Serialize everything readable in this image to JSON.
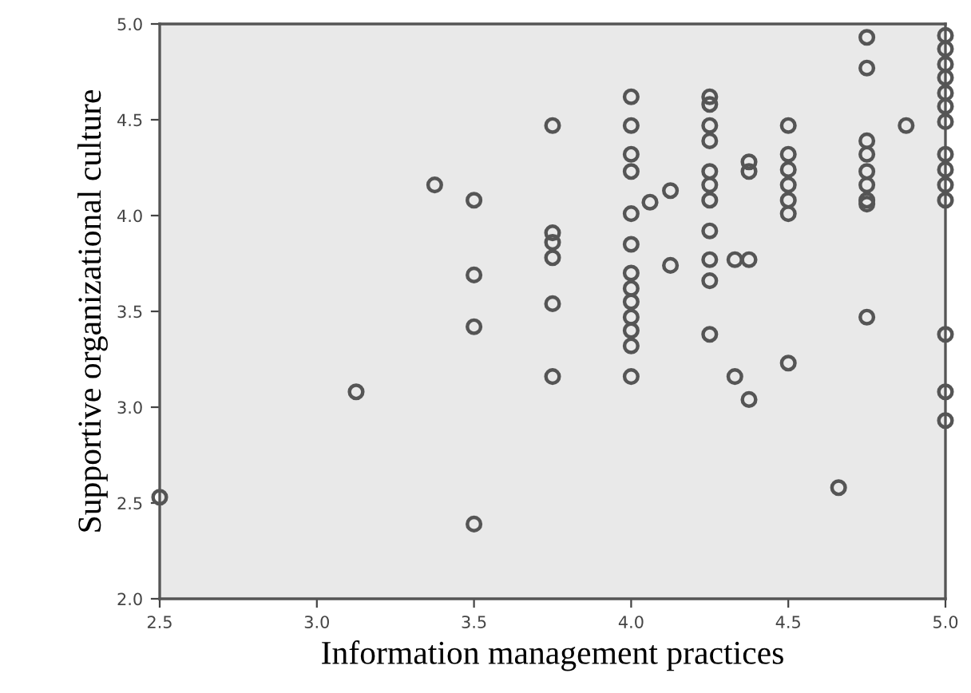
{
  "chart_data": {
    "type": "scatter",
    "xlabel": "Information management practices",
    "ylabel": "Supportive organizational culture",
    "xlim": [
      2.5,
      5.0
    ],
    "xticks": [
      2.5,
      {
        "value": 3,
        "label": "3.0"
      },
      3.5,
      {
        "value": 4,
        "label": "4.0"
      },
      4.5,
      {
        "value": 5,
        "label": "5.0"
      }
    ],
    "ylim": [
      2.0,
      5.0
    ],
    "yticks": [
      {
        "value": 2,
        "label": "2.0"
      },
      2.5,
      {
        "value": 3,
        "label": "3.0"
      },
      3.5,
      {
        "value": 4,
        "label": "4.0"
      },
      4.5,
      {
        "value": 5,
        "label": "5.0"
      }
    ],
    "grid": false,
    "marker": "circle",
    "series": [
      {
        "color": "#555555",
        "x": [
          2.5,
          3.125,
          3.375,
          3.5,
          3.5,
          3.5,
          3.5,
          3.75,
          3.75,
          3.75,
          3.75,
          3.75,
          3.75,
          4.0,
          4.0,
          4.0,
          4.0,
          4.0,
          4.0,
          4.0,
          4.0,
          4.0,
          4.0,
          4.0,
          4.0,
          4.0,
          4.06,
          4.125,
          4.125,
          4.25,
          4.25,
          4.25,
          4.25,
          4.25,
          4.25,
          4.25,
          4.25,
          4.25,
          4.25,
          4.25,
          4.33,
          4.33,
          4.375,
          4.375,
          4.375,
          4.375,
          4.5,
          4.5,
          4.5,
          4.5,
          4.5,
          4.5,
          4.5,
          4.66,
          4.75,
          4.75,
          4.75,
          4.75,
          4.75,
          4.75,
          4.75,
          4.75,
          4.75,
          4.875,
          5.0,
          5.0,
          5.0,
          5.0,
          5.0,
          5.0,
          5.0,
          5.0,
          5.0,
          5.0,
          5.0,
          5.0,
          5.0,
          5.0
        ],
        "values": [
          2.53,
          3.08,
          4.16,
          4.08,
          3.69,
          3.42,
          2.39,
          4.47,
          3.91,
          3.86,
          3.78,
          3.54,
          3.16,
          4.62,
          4.47,
          4.32,
          4.23,
          4.01,
          3.85,
          3.7,
          3.62,
          3.55,
          3.47,
          3.4,
          3.32,
          3.16,
          4.07,
          4.13,
          3.74,
          4.62,
          4.58,
          4.47,
          4.39,
          4.23,
          4.16,
          4.08,
          3.92,
          3.77,
          3.66,
          3.38,
          3.77,
          3.16,
          4.28,
          4.23,
          3.77,
          3.04,
          4.47,
          4.32,
          4.24,
          4.16,
          4.08,
          4.01,
          3.23,
          2.58,
          4.93,
          4.77,
          4.39,
          4.32,
          4.23,
          4.16,
          4.08,
          4.06,
          3.47,
          4.47,
          4.94,
          4.87,
          4.79,
          4.72,
          4.64,
          4.57,
          4.49,
          4.32,
          4.24,
          4.16,
          4.08,
          3.38,
          3.08,
          2.93
        ]
      }
    ]
  }
}
